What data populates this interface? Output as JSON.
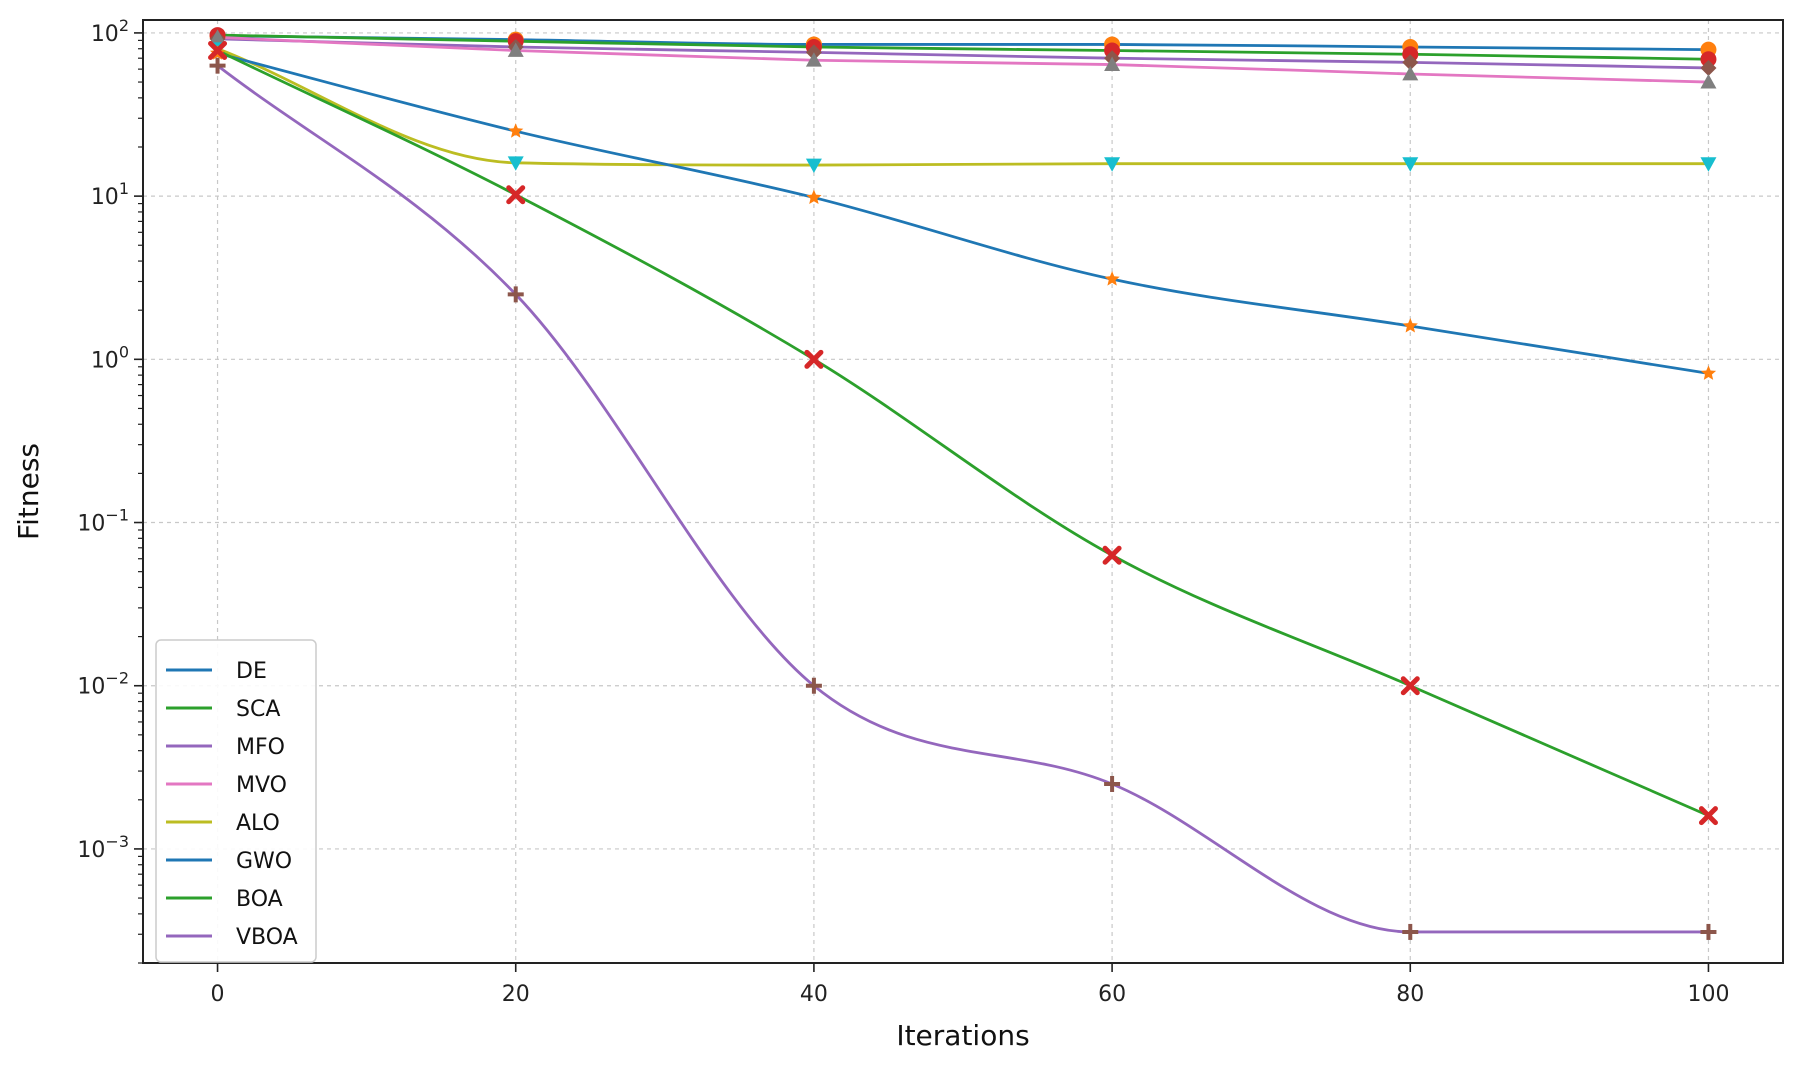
{
  "chart_data": {
    "type": "line",
    "title": "",
    "xlabel": "Iterations",
    "ylabel": "Fitness",
    "yscale": "log",
    "xlim": [
      -5,
      105
    ],
    "ylim": [
      0.0002,
      120
    ],
    "grid": true,
    "legend_position": "lower-left",
    "x_ticks": [
      0,
      20,
      40,
      60,
      80,
      100
    ],
    "y_ticks": [
      0.001,
      0.01,
      0.1,
      1,
      10,
      100
    ],
    "series": [
      {
        "name": "DE",
        "color": "#1f77b4",
        "marker": "circle",
        "marker_color": "#ff7f0e",
        "legend_color": "#1f77b4",
        "x": [
          0,
          20,
          40,
          60,
          80,
          100
        ],
        "values": [
          96,
          91,
          85,
          85,
          82,
          79
        ]
      },
      {
        "name": "SCA",
        "color": "#2ca02c",
        "marker": "circle",
        "marker_color": "#d62728",
        "legend_color": "#2ca02c",
        "x": [
          0,
          20,
          40,
          60,
          80,
          100
        ],
        "values": [
          97,
          89,
          82,
          78,
          74,
          69
        ]
      },
      {
        "name": "MFO",
        "color": "#9467bd",
        "marker": "diamond",
        "marker_color": "#8c564b",
        "legend_color": "#9467bd",
        "x": [
          0,
          20,
          40,
          60,
          80,
          100
        ],
        "values": [
          92,
          82,
          76,
          70,
          66,
          61
        ]
      },
      {
        "name": "MVO",
        "color": "#e377c2",
        "marker": "triangle-up",
        "marker_color": "#7f7f7f",
        "legend_color": "#e377c2",
        "x": [
          0,
          20,
          40,
          60,
          80,
          100
        ],
        "values": [
          94,
          78,
          68,
          64,
          56,
          50
        ]
      },
      {
        "name": "ALO",
        "color": "#bcbd22",
        "marker": "triangle-down",
        "marker_color": "#17becf",
        "legend_color": "#bcbd22",
        "x": [
          0,
          20,
          40,
          60,
          80,
          100
        ],
        "values": [
          80,
          16,
          15.5,
          15.8,
          15.8,
          15.8
        ]
      },
      {
        "name": "GWO",
        "color": "#1f77b4",
        "marker": "star",
        "marker_color": "#ff7f0e",
        "legend_color": "#1f77b4",
        "x": [
          0,
          20,
          40,
          60,
          80,
          100
        ],
        "values": [
          75,
          25,
          9.8,
          3.1,
          1.6,
          0.82
        ]
      },
      {
        "name": "BOA",
        "color": "#2ca02c",
        "marker": "x",
        "marker_color": "#d62728",
        "legend_color": "#2ca02c",
        "x": [
          0,
          20,
          40,
          60,
          80,
          100
        ],
        "values": [
          78,
          10.2,
          1.0,
          0.063,
          0.01,
          0.0016
        ]
      },
      {
        "name": "VBOA",
        "color": "#9467bd",
        "marker": "plus",
        "marker_color": "#8c564b",
        "legend_color": "#9467bd",
        "x": [
          0,
          20,
          40,
          60,
          80,
          100
        ],
        "values": [
          63,
          2.5,
          0.01,
          0.0025,
          0.00031,
          0.00031
        ]
      }
    ]
  }
}
